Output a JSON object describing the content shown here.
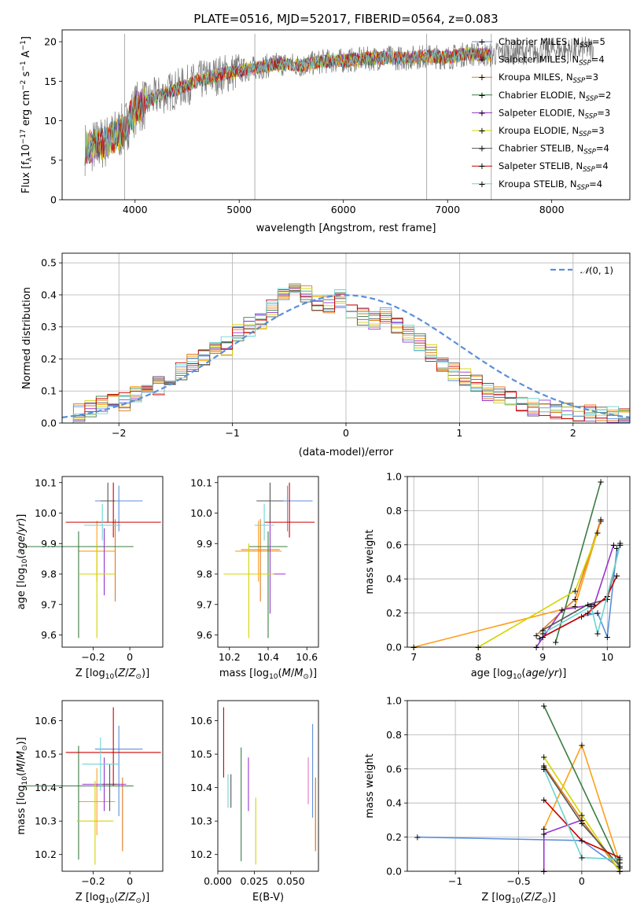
{
  "title": "PLATE=0516, MJD=52017, FIBERID=0564, z=0.083",
  "colors": {
    "Chabrier MILES": "#5b8fd9",
    "Salpeter MILES": "#ff9f1c",
    "Kroupa MILES": "#e07a1f",
    "Chabrier ELODIE": "#3a7d44",
    "Salpeter ELODIE": "#9932cc",
    "Kroupa ELODIE": "#d4d400",
    "Chabrier STELIB": "#555555",
    "Salpeter STELIB": "#cc0000",
    "Kroupa STELIB": "#6dd3d3",
    "normal": "#5b8fd9"
  },
  "chart_data": [
    {
      "type": "line",
      "title": "PLATE=0516, MJD=52017, FIBERID=0564, z=0.083",
      "xlabel": "wavelength [Angstrom, rest frame]",
      "ylabel": "Flux [f_λ 10^-17 erg cm^-2 s^-1 A^-1]",
      "xlim": [
        3300,
        8750
      ],
      "ylim": [
        0,
        21.5
      ],
      "xticks": [
        4000,
        5000,
        6000,
        7000,
        8000
      ],
      "yticks": [
        0,
        5,
        10,
        15,
        20
      ],
      "legend_position": "top-right",
      "legend": [
        {
          "name": "Chabrier MILES",
          "nssp": "5"
        },
        {
          "name": "Salpeter MILES",
          "nssp": "4"
        },
        {
          "name": "Kroupa MILES",
          "nssp": "3"
        },
        {
          "name": "Chabrier ELODIE",
          "nssp": "2"
        },
        {
          "name": "Salpeter ELODIE",
          "nssp": "3"
        },
        {
          "name": "Kroupa ELODIE",
          "nssp": "3"
        },
        {
          "name": "Chabrier STELIB",
          "nssp": "4"
        },
        {
          "name": "Salpeter STELIB",
          "nssp": "4"
        },
        {
          "name": "Kroupa STELIB",
          "nssp": "4"
        }
      ],
      "observed_spectrum": {
        "x": [
          3520,
          3600,
          3700,
          3800,
          3900,
          4000,
          4200,
          4400,
          4600,
          4800,
          5000,
          5200,
          5400,
          5600,
          5800,
          6000,
          6200,
          6400,
          6600,
          6800,
          7000,
          7200,
          7400,
          7600,
          7800,
          8000,
          8200,
          8400
        ],
        "y": [
          6.5,
          6.8,
          7.2,
          8.0,
          9.0,
          11.5,
          13.0,
          14.0,
          15.0,
          15.8,
          16.3,
          16.8,
          17.2,
          17.0,
          17.5,
          17.6,
          17.8,
          18.0,
          17.9,
          18.2,
          18.0,
          18.5,
          18.3,
          18.8,
          18.6,
          19.0,
          18.9,
          19.2
        ]
      },
      "model_fits_span": [
        3520,
        7420
      ]
    },
    {
      "type": "step",
      "xlabel": "(data-model)/error",
      "ylabel": "Normed distribution",
      "xlim": [
        -2.5,
        2.5
      ],
      "ylim": [
        0,
        0.53
      ],
      "xticks": [
        -2,
        -1,
        0,
        1,
        2
      ],
      "yticks": [
        0.0,
        0.1,
        0.2,
        0.3,
        0.4,
        0.5
      ],
      "legend_position": "top-right",
      "legend": [
        "N(0,1)"
      ],
      "bin_width": 0.1,
      "bin_start": -2.5,
      "histogram": [
        0.03,
        0.035,
        0.045,
        0.055,
        0.06,
        0.065,
        0.085,
        0.1,
        0.115,
        0.14,
        0.16,
        0.19,
        0.21,
        0.23,
        0.24,
        0.28,
        0.3,
        0.32,
        0.36,
        0.39,
        0.42,
        0.4,
        0.38,
        0.37,
        0.39,
        0.35,
        0.33,
        0.32,
        0.33,
        0.31,
        0.28,
        0.25,
        0.22,
        0.19,
        0.16,
        0.14,
        0.12,
        0.1,
        0.085,
        0.07,
        0.06,
        0.05,
        0.045,
        0.04,
        0.035,
        0.03,
        0.028,
        0.025,
        0.022,
        0.02
      ]
    },
    {
      "type": "scatter",
      "xlabel": "Z [log10(Z/Z⊙)]",
      "ylabel": "age  [log10(age/yr)]",
      "xlim": [
        -0.37,
        0.18
      ],
      "ylim": [
        9.56,
        10.12
      ],
      "xticks": [
        -0.2,
        0.0
      ],
      "yticks": [
        9.6,
        9.7,
        9.8,
        9.9,
        10.0,
        10.1
      ],
      "points": [
        {
          "model": "Chabrier MILES",
          "x": -0.06,
          "y": 10.04,
          "xerr": 0.13,
          "yerr": [
            0.1,
            0.05
          ]
        },
        {
          "model": "Salpeter MILES",
          "x": -0.18,
          "y": 9.875,
          "xerr": 0.1,
          "yerr": [
            0.1,
            0.1
          ]
        },
        {
          "model": "Kroupa MILES",
          "x": -0.08,
          "y": 9.88,
          "xerr": 0.0,
          "yerr": [
            0.17,
            0.1
          ]
        },
        {
          "model": "Chabrier ELODIE",
          "x": -0.28,
          "y": 9.89,
          "xerr": 0.3,
          "yerr": [
            0.3,
            0.05
          ]
        },
        {
          "model": "Salpeter ELODIE",
          "x": -0.14,
          "y": 9.8,
          "xerr": 0.0,
          "yerr": [
            0.07,
            0.15
          ]
        },
        {
          "model": "Kroupa ELODIE",
          "x": -0.18,
          "y": 9.8,
          "xerr": 0.1,
          "yerr": [
            0.21,
            0.1
          ]
        },
        {
          "model": "Chabrier STELIB",
          "x": -0.12,
          "y": 10.04,
          "xerr": 0.04,
          "yerr": [
            0.07,
            0.06
          ]
        },
        {
          "model": "Salpeter STELIB",
          "x": -0.09,
          "y": 9.97,
          "xerr": 0.26,
          "yerr": [
            0.05,
            0.13
          ]
        },
        {
          "model": "Kroupa STELIB",
          "x": -0.15,
          "y": 9.96,
          "xerr": 0.1,
          "yerr": [
            0.05,
            0.07
          ]
        }
      ]
    },
    {
      "type": "scatter",
      "xlabel": "mass [log10(M/M⊙)]",
      "ylabel": "",
      "xlim": [
        10.14,
        10.66
      ],
      "ylim": [
        9.56,
        10.12
      ],
      "xticks": [
        10.2,
        10.4,
        10.6
      ],
      "yticks": [
        9.6,
        9.7,
        9.8,
        9.9,
        10.0,
        10.1
      ],
      "points": [
        {
          "model": "Chabrier MILES",
          "x": 10.5,
          "y": 10.04,
          "xerr": 0.13,
          "yerr": [
            0.1,
            0.05
          ]
        },
        {
          "model": "Salpeter MILES",
          "x": 10.35,
          "y": 9.875,
          "xerr": 0.12,
          "yerr": [
            0.1,
            0.1
          ]
        },
        {
          "model": "Kroupa MILES",
          "x": 10.36,
          "y": 9.88,
          "xerr": 0.1,
          "yerr": [
            0.17,
            0.1
          ]
        },
        {
          "model": "Chabrier ELODIE",
          "x": 10.4,
          "y": 9.89,
          "xerr": 0.1,
          "yerr": [
            0.3,
            0.05
          ]
        },
        {
          "model": "Salpeter ELODIE",
          "x": 10.41,
          "y": 9.8,
          "xerr": 0.08,
          "yerr": [
            0.13,
            0.2
          ]
        },
        {
          "model": "Kroupa ELODIE",
          "x": 10.3,
          "y": 9.8,
          "xerr": 0.13,
          "yerr": [
            0.21,
            0.1
          ]
        },
        {
          "model": "Chabrier STELIB",
          "x": 10.41,
          "y": 10.04,
          "xerr": 0.07,
          "yerr": [
            0.07,
            0.06
          ]
        },
        {
          "model": "Salpeter STELIB",
          "x": 10.51,
          "y": 9.97,
          "xerr": 0.13,
          "yerr": [
            0.05,
            0.13
          ]
        },
        {
          "model": "Kroupa STELIB",
          "x": 10.38,
          "y": 9.96,
          "xerr": 0.05,
          "yerr": [
            0.05,
            0.07
          ]
        }
      ]
    },
    {
      "type": "line",
      "xlabel": "age  [log10(age/yr)]",
      "ylabel": "mass weight",
      "xlim": [
        6.9,
        10.35
      ],
      "ylim": [
        0,
        1.0
      ],
      "xticks": [
        7,
        8,
        9,
        10
      ],
      "yticks": [
        0.0,
        0.2,
        0.4,
        0.6,
        0.8,
        1.0
      ],
      "series": [
        {
          "model": "Chabrier MILES",
          "x": [
            8.95,
            9.6,
            9.85,
            10.0,
            10.15
          ],
          "y": [
            0.05,
            0.18,
            0.2,
            0.06,
            0.58
          ]
        },
        {
          "model": "Salpeter MILES",
          "x": [
            7.0,
            9.5,
            9.9
          ],
          "y": [
            0.0,
            0.24,
            0.74
          ]
        },
        {
          "model": "Kroupa MILES",
          "x": [
            8.9,
            9.5,
            9.9
          ],
          "y": [
            0.07,
            0.28,
            0.75
          ]
        },
        {
          "model": "Chabrier ELODIE",
          "x": [
            9.2,
            9.9
          ],
          "y": [
            0.03,
            0.97
          ]
        },
        {
          "model": "Salpeter ELODIE",
          "x": [
            8.9,
            9.3,
            9.8,
            10.1
          ],
          "y": [
            0.0,
            0.22,
            0.25,
            0.6
          ]
        },
        {
          "model": "Kroupa ELODIE",
          "x": [
            8.0,
            9.5,
            9.85
          ],
          "y": [
            0.0,
            0.33,
            0.67
          ]
        },
        {
          "model": "Chabrier STELIB",
          "x": [
            9.0,
            9.7,
            10.0,
            10.2
          ],
          "y": [
            0.1,
            0.25,
            0.28,
            0.61
          ]
        },
        {
          "model": "Salpeter STELIB",
          "x": [
            9.0,
            9.7,
            10.0,
            10.15
          ],
          "y": [
            0.06,
            0.2,
            0.3,
            0.42
          ]
        },
        {
          "model": "Kroupa STELIB",
          "x": [
            9.0,
            9.75,
            9.85,
            10.2
          ],
          "y": [
            0.08,
            0.24,
            0.08,
            0.6
          ]
        }
      ]
    },
    {
      "type": "scatter",
      "xlabel": "Z [log10(Z/Z⊙)]",
      "ylabel": "mass [log10(M/M⊙)]",
      "xlim": [
        -0.37,
        0.18
      ],
      "ylim": [
        10.15,
        10.66
      ],
      "xticks": [
        -0.2,
        0.0
      ],
      "yticks": [
        10.2,
        10.3,
        10.4,
        10.5,
        10.6
      ],
      "points": [
        {
          "model": "Chabrier MILES",
          "x": -0.06,
          "y": 10.515,
          "xerr": 0.13,
          "yerr": [
            0.2,
            0.07
          ]
        },
        {
          "model": "Salpeter MILES",
          "x": -0.18,
          "y": 10.358,
          "xerr": 0.1,
          "yerr": [
            0.1,
            0.1
          ]
        },
        {
          "model": "Kroupa MILES",
          "x": -0.04,
          "y": 10.32,
          "xerr": 0.0,
          "yerr": [
            0.11,
            0.11
          ]
        },
        {
          "model": "Chabrier ELODIE",
          "x": -0.28,
          "y": 10.405,
          "xerr": 0.3,
          "yerr": [
            0.22,
            0.12
          ]
        },
        {
          "model": "Salpeter ELODIE",
          "x": -0.14,
          "y": 10.41,
          "xerr": 0.12,
          "yerr": [
            0.08,
            0.08
          ]
        },
        {
          "model": "Kroupa ELODIE",
          "x": -0.19,
          "y": 10.3,
          "xerr": 0.1,
          "yerr": [
            0.13,
            0.12
          ]
        },
        {
          "model": "Chabrier STELIB",
          "x": -0.11,
          "y": 10.41,
          "xerr": 0.04,
          "yerr": [
            0.08,
            0.06
          ]
        },
        {
          "model": "Salpeter STELIB",
          "x": -0.09,
          "y": 10.505,
          "xerr": 0.26,
          "yerr": [
            0.1,
            0.135
          ]
        },
        {
          "model": "Kroupa STELIB",
          "x": -0.16,
          "y": 10.47,
          "xerr": 0.1,
          "yerr": [
            0.08,
            0.08
          ]
        }
      ]
    },
    {
      "type": "scatter",
      "xlabel": "E(B-V)",
      "ylabel": "",
      "xlim": [
        0.0,
        0.069
      ],
      "ylim": [
        10.15,
        10.66
      ],
      "xticks": [
        0.0,
        0.025,
        0.05
      ],
      "xticklabels": [
        "0.000",
        "0.025",
        "0.050"
      ],
      "yticks": [
        10.2,
        10.3,
        10.4,
        10.5,
        10.6
      ],
      "points": [
        {
          "model": "Chabrier MILES",
          "x": 0.065,
          "y": 10.45,
          "yerr": [
            0.14,
            0.14
          ]
        },
        {
          "model": "Salpeter MILES",
          "x": 0.067,
          "y": 10.32,
          "yerr": [
            0.11,
            0.11
          ]
        },
        {
          "model": "Kroupa MILES",
          "x": 0.067,
          "y": 10.32,
          "yerr": [
            0.11,
            0.11
          ]
        },
        {
          "model": "Chabrier ELODIE",
          "x": 0.016,
          "y": 10.35,
          "yerr": [
            0.17,
            0.17
          ]
        },
        {
          "model": "Salpeter ELODIE",
          "x": 0.021,
          "y": 10.41,
          "yerr": [
            0.08,
            0.08
          ]
        },
        {
          "model": "Kroupa ELODIE",
          "x": 0.026,
          "y": 10.27,
          "yerr": [
            0.1,
            0.1
          ]
        },
        {
          "model": "Chabrier STELIB",
          "x": 0.009,
          "y": 10.39,
          "yerr": [
            0.05,
            0.05
          ]
        },
        {
          "model": "Salpeter STELIB",
          "x": 0.004,
          "y": 10.53,
          "yerr": [
            0.1,
            0.11
          ]
        },
        {
          "model": "Kroupa STELIB",
          "x": 0.007,
          "y": 10.39,
          "yerr": [
            0.05,
            0.05
          ]
        },
        {
          "model": "Kroupa MILES",
          "x": 0.062,
          "y": 10.42,
          "yerr": [
            0.07,
            0.07
          ],
          "note": "pink"
        }
      ]
    },
    {
      "type": "line",
      "xlabel": "Z [log10(Z/Z⊙)]",
      "ylabel": "mass weight",
      "xlim": [
        -1.38,
        0.38
      ],
      "ylim": [
        0,
        1.0
      ],
      "xticks": [
        -1.0,
        -0.5,
        0.0
      ],
      "yticks": [
        0.0,
        0.2,
        0.4,
        0.6,
        0.8,
        1.0
      ],
      "series": [
        {
          "model": "Chabrier MILES",
          "x": [
            -1.3,
            0.0,
            0.3
          ],
          "y": [
            0.2,
            0.18,
            0.02
          ]
        },
        {
          "model": "Salpeter MILES",
          "x": [
            -0.3,
            0.0,
            0.3
          ],
          "y": [
            0.25,
            0.74,
            0.05
          ]
        },
        {
          "model": "Kroupa MILES",
          "x": [
            -0.3,
            0.0,
            0.3
          ],
          "y": [
            0.62,
            0.3,
            0.0
          ]
        },
        {
          "model": "Chabrier ELODIE",
          "x": [
            -0.3,
            0.3
          ],
          "y": [
            0.97,
            0.03
          ]
        },
        {
          "model": "Salpeter ELODIE",
          "x": [
            -0.3,
            -0.3,
            0.0
          ],
          "y": [
            0.0,
            0.22,
            0.3
          ]
        },
        {
          "model": "Kroupa ELODIE",
          "x": [
            -0.3,
            0.0,
            0.3
          ],
          "y": [
            0.67,
            0.33,
            0.0
          ]
        },
        {
          "model": "Chabrier STELIB",
          "x": [
            -0.3,
            0.0,
            0.3
          ],
          "y": [
            0.61,
            0.28,
            0.03
          ]
        },
        {
          "model": "Salpeter STELIB",
          "x": [
            -0.3,
            0.0,
            0.3
          ],
          "y": [
            0.42,
            0.18,
            0.08
          ]
        },
        {
          "model": "Kroupa STELIB",
          "x": [
            -0.3,
            0.0,
            0.3
          ],
          "y": [
            0.6,
            0.08,
            0.07
          ]
        }
      ]
    }
  ]
}
